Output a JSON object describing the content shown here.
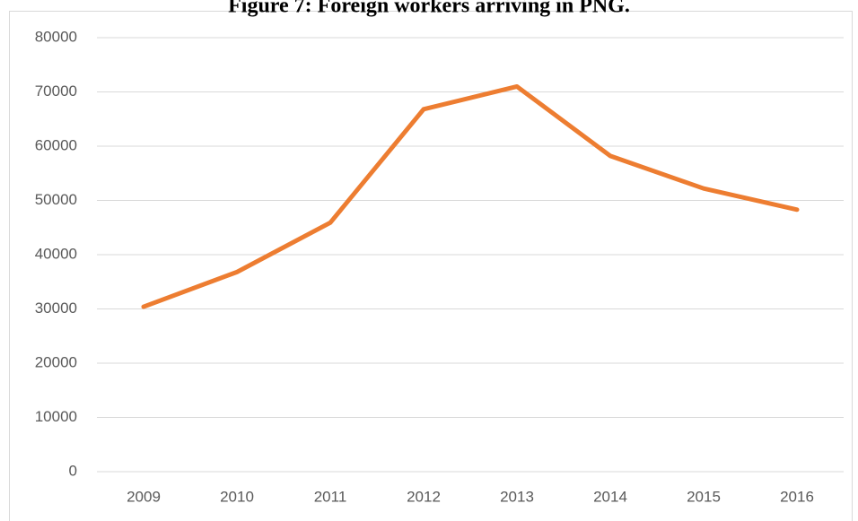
{
  "chart_data": {
    "type": "line",
    "title": "Figure 7: Foreign workers arriving in PNG.",
    "categories": [
      "2009",
      "2010",
      "2011",
      "2012",
      "2013",
      "2014",
      "2015",
      "2016"
    ],
    "series": [
      {
        "name": "Foreign workers",
        "color": "#ed7d31",
        "values": [
          30400,
          36800,
          45900,
          66800,
          71000,
          58200,
          52200,
          48300
        ]
      }
    ],
    "ylim": [
      0,
      80000
    ],
    "yticks": [
      0,
      10000,
      20000,
      30000,
      40000,
      50000,
      60000,
      70000,
      80000
    ],
    "grid": true
  }
}
